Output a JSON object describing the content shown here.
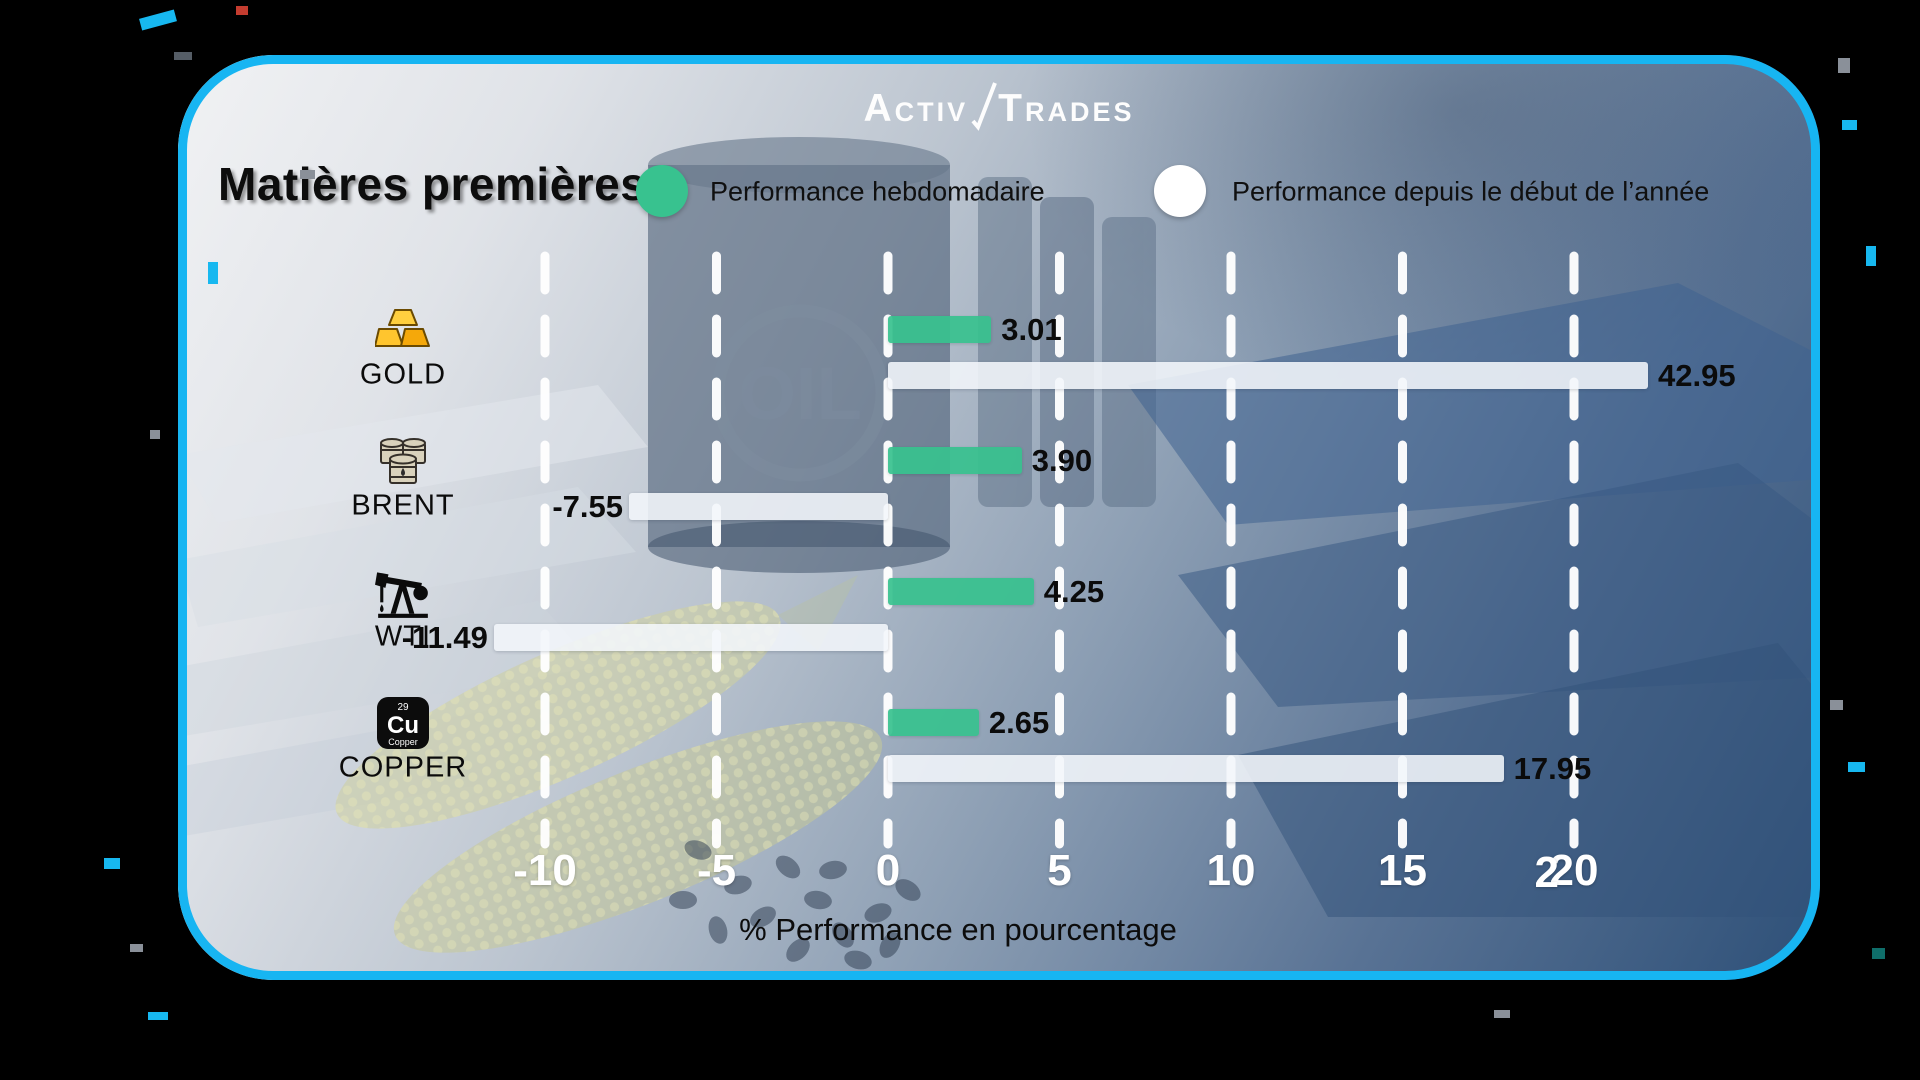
{
  "brand": {
    "logo_text_1": "ACTIV",
    "logo_text_2": "TRADES"
  },
  "header": {
    "title": "Matières premières"
  },
  "legend": {
    "items": [
      {
        "label": "Performance hebdomadaire",
        "color": "#38c28f"
      },
      {
        "label": "Performance depuis le début de l’année",
        "color": "#ffffff"
      }
    ]
  },
  "background": {
    "barrel_label": "OIL"
  },
  "copper_tile": {
    "number": "29",
    "symbol": "Cu",
    "name": "Copper"
  },
  "chart_data": {
    "type": "bar",
    "orientation": "horizontal",
    "title": "Matières premières",
    "categories": [
      "GOLD",
      "BRENT",
      "WTI",
      "COPPER"
    ],
    "category_icons": [
      "gold-bars-icon",
      "oil-barrels-icon",
      "oil-pump-icon",
      "copper-element-icon"
    ],
    "series": [
      {
        "name": "Performance hebdomadaire",
        "color": "#38c28f",
        "values": [
          3.01,
          3.9,
          4.25,
          2.65
        ],
        "labels": [
          "3.01",
          "3.90",
          "4.25",
          "2.65"
        ]
      },
      {
        "name": "Performance depuis le début de l’année",
        "color": "#f2f5f9",
        "values": [
          42.95,
          -7.55,
          -11.49,
          17.95
        ],
        "labels": [
          "42.95",
          "-7.55",
          "-11.49",
          "17.95"
        ]
      }
    ],
    "xlabel": "% Performance en pourcentage",
    "x_ticks": [
      "-10",
      "-5",
      "0",
      "5",
      "10",
      "15",
      "20"
    ],
    "x_tick_values": [
      -10,
      -5,
      0,
      5,
      10,
      15,
      20
    ],
    "xlim": [
      -13.5,
      22.2
    ],
    "grid": "dashed-vertical-white",
    "legend_position": "top",
    "clip_note": "GOLD year-to-date bar is clipped at the right plot edge"
  }
}
